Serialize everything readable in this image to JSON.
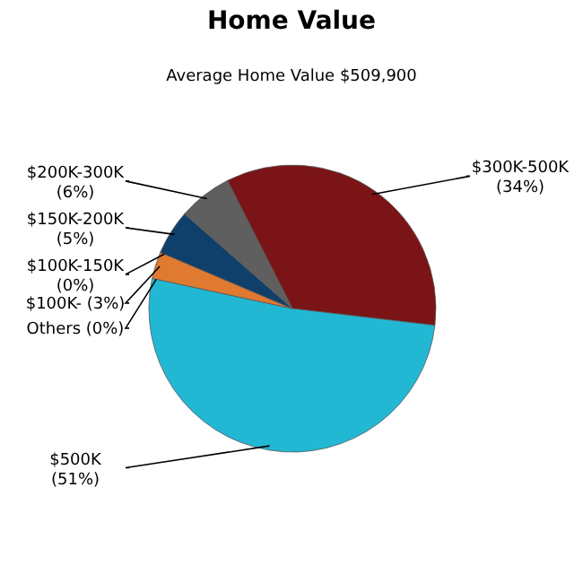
{
  "chart_data": {
    "type": "pie",
    "title": "Home Value",
    "subtitle": "Average Home Value  $509,900",
    "categories": [
      "$300K-500K",
      "$500K",
      "Others",
      "$100K-",
      "$100K-150K",
      "$150K-200K",
      "$200K-300K"
    ],
    "values": [
      34,
      51,
      0,
      3,
      0,
      5,
      6
    ],
    "value_labels": [
      "(34%)",
      "(51%)",
      "(0%)",
      "(3%)",
      "(0%)",
      "(5%)",
      "(6%)"
    ],
    "colors": [
      "#7b1416",
      "#22b8d4",
      null,
      "#e07a30",
      null,
      "#0f3f6b",
      "#5f5f5f"
    ]
  }
}
